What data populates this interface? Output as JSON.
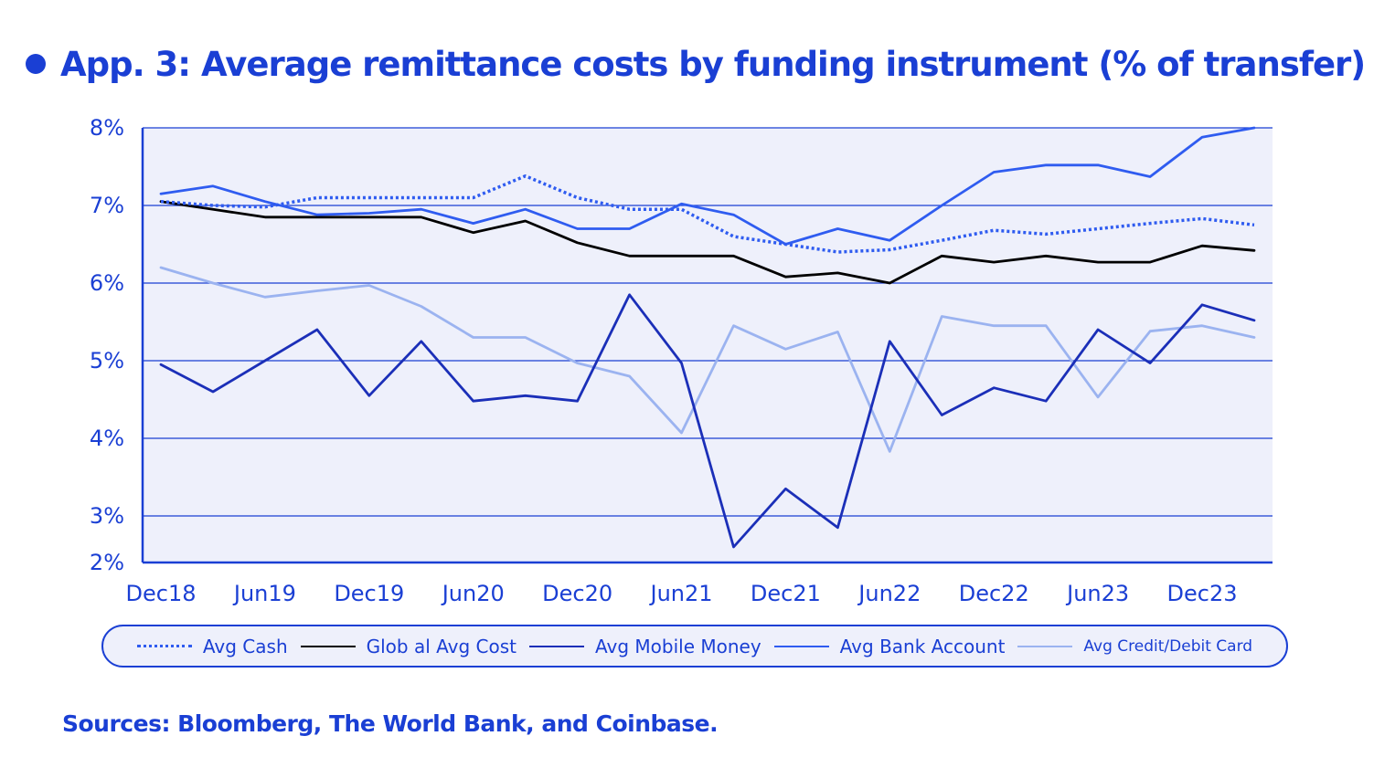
{
  "title": "App. 3: Average remittance costs by funding instrument (% of transfer)",
  "source": "Sources: Bloomberg, The World Bank, and Coinbase.",
  "colors": {
    "primary": "#1a3fd4",
    "plot_bg": "#eef0fb",
    "cash": "#2f5cf0",
    "global": "#000000",
    "mobile": "#1b2fb8",
    "bank": "#2f5cf0",
    "card": "#9bb3f0"
  },
  "chart_data": {
    "type": "line",
    "title": "App. 3: Average remittance costs by funding instrument (% of transfer)",
    "xlabel": "",
    "ylabel": "",
    "x_tick_labels": [
      "Dec18",
      "Jun19",
      "Dec19",
      "Jun20",
      "Dec20",
      "Jun21",
      "Dec21",
      "Jun22",
      "Dec22",
      "Jun23",
      "Dec23"
    ],
    "y_tick_labels": [
      "8%",
      "7%",
      "6%",
      "5%",
      "4%",
      "3%",
      "2%"
    ],
    "ylim": [
      2.4,
      8
    ],
    "y_ticks": [
      8,
      7,
      6,
      5,
      4,
      3,
      2.4
    ],
    "x": [
      "Dec18",
      "Mar19",
      "Jun19",
      "Sep19",
      "Dec19",
      "Mar20",
      "Jun20",
      "Sep20",
      "Dec20",
      "Mar21",
      "Jun21",
      "Sep21",
      "Dec21",
      "Mar22",
      "Jun22",
      "Sep22",
      "Dec22",
      "Mar23",
      "Jun23",
      "Sep23",
      "Dec23",
      "Mar24"
    ],
    "grid": true,
    "legend_position": "bottom",
    "series": [
      {
        "name": "Avg Cash",
        "style": "dotted",
        "color": "#2f5cf0",
        "values": [
          7.05,
          7.0,
          6.98,
          7.1,
          7.1,
          7.1,
          7.1,
          7.38,
          7.1,
          6.95,
          6.95,
          6.6,
          6.5,
          6.4,
          6.43,
          6.55,
          6.68,
          6.63,
          6.7,
          6.77,
          6.83,
          6.75
        ]
      },
      {
        "name": "Glob al Avg Cost",
        "style": "solid",
        "color": "#000000",
        "values": [
          7.05,
          6.95,
          6.85,
          6.85,
          6.85,
          6.85,
          6.65,
          6.8,
          6.52,
          6.35,
          6.35,
          6.35,
          6.08,
          6.13,
          6.0,
          6.35,
          6.27,
          6.35,
          6.27,
          6.27,
          6.48,
          6.42
        ]
      },
      {
        "name": "Avg Mobile Money",
        "style": "solid",
        "color": "#1b2fb8",
        "values": [
          4.95,
          4.6,
          5.0,
          5.4,
          4.55,
          5.25,
          4.48,
          4.55,
          4.48,
          5.85,
          4.97,
          2.6,
          3.35,
          2.85,
          5.25,
          4.3,
          4.65,
          4.48,
          5.4,
          4.97,
          5.72,
          5.52
        ]
      },
      {
        "name": "Avg Bank Account",
        "style": "solid",
        "color": "#2f5cf0",
        "values": [
          7.15,
          7.25,
          7.05,
          6.88,
          6.9,
          6.95,
          6.77,
          6.95,
          6.7,
          6.7,
          7.02,
          6.88,
          6.5,
          6.7,
          6.55,
          7.0,
          7.43,
          7.52,
          7.52,
          7.37,
          7.88,
          8.0
        ]
      },
      {
        "name": "Avg Credit/Debit Card",
        "style": "solid",
        "color": "#9bb3f0",
        "values": [
          6.2,
          6.0,
          5.82,
          5.9,
          5.97,
          5.7,
          5.3,
          5.3,
          4.97,
          4.8,
          4.07,
          5.45,
          5.15,
          5.37,
          3.83,
          5.57,
          5.45,
          5.45,
          4.53,
          5.38,
          5.45,
          5.3
        ]
      }
    ]
  }
}
